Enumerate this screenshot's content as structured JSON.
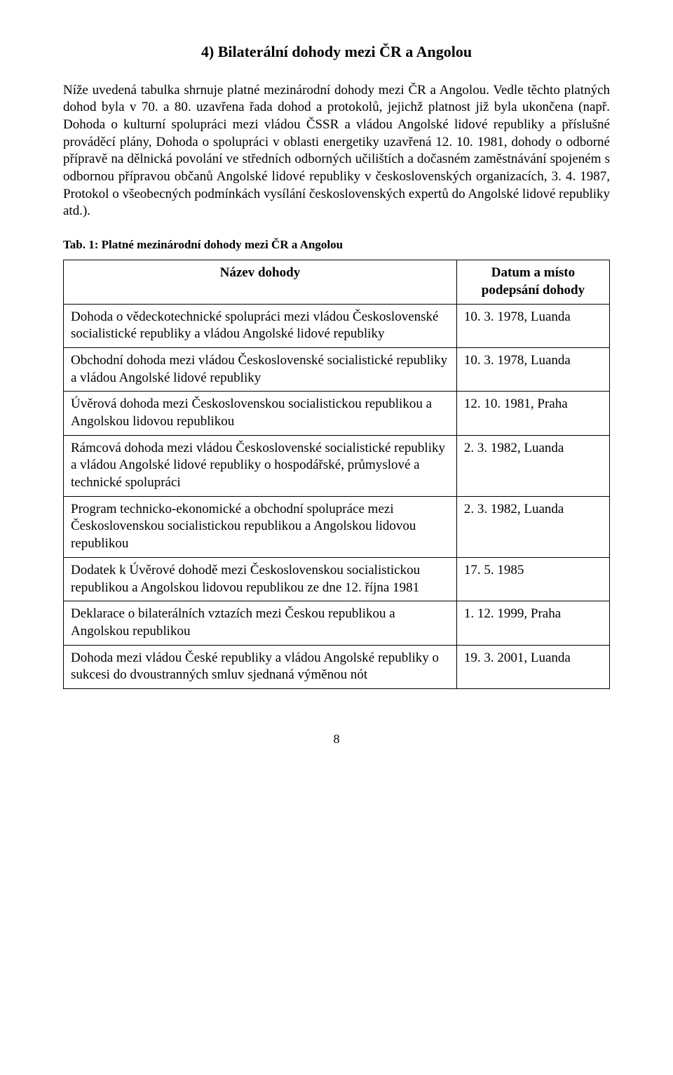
{
  "heading": "4) Bilaterální dohody mezi ČR a Angolou",
  "body": "Níže uvedená tabulka shrnuje platné mezinárodní dohody mezi ČR a Angolou. Vedle těchto platných dohod byla v 70. a 80. uzavřena řada dohod a protokolů, jejichž platnost již byla ukončena (např. Dohoda o kulturní spolupráci mezi vládou ČSSR a vládou Angolské lidové republiky a příslušné prováděcí plány, Dohoda o spolupráci v oblasti energetiky uzavřená 12. 10. 1981, dohody o odborné přípravě na dělnická povolání ve středních odborných učilištích a dočasném zaměstnávání spojeném s odbornou přípravou občanů Angolské lidové republiky v československých organizacích, 3. 4. 1987, Protokol o všeobecných podmínkách vysílání československých expertů do Angolské lidové republiky atd.).",
  "table_caption": "Tab. 1: Platné mezinárodní dohody mezi ČR a Angolou",
  "columns": {
    "name": "Název dohody",
    "date": "Datum a místo podepsání dohody"
  },
  "rows": [
    {
      "name": "Dohoda o vědeckotechnické spolupráci mezi vládou Československé socialistické republiky a vládou Angolské lidové republiky",
      "date": "10. 3. 1978, Luanda"
    },
    {
      "name": "Obchodní dohoda mezi vládou Československé socialistické republiky a vládou Angolské lidové republiky",
      "date": "10. 3. 1978, Luanda"
    },
    {
      "name": "Úvěrová dohoda mezi Československou socialistickou republikou a Angolskou lidovou republikou",
      "date": "12. 10. 1981, Praha"
    },
    {
      "name": "Rámcová dohoda mezi vládou Československé socialistické republiky a vládou Angolské lidové republiky o hospodářské, průmyslové a technické spolupráci",
      "date": "2. 3. 1982, Luanda"
    },
    {
      "name": "Program technicko-ekonomické a obchodní spolupráce mezi Československou socialistickou republikou a Angolskou lidovou republikou",
      "date": "2. 3. 1982, Luanda"
    },
    {
      "name": "Dodatek k Úvěrové dohodě mezi Československou socialistickou republikou a Angolskou lidovou republikou ze dne 12. října 1981",
      "date": "17. 5. 1985"
    },
    {
      "name": "Deklarace o bilaterálních vztazích mezi Českou republikou a Angolskou republikou",
      "date": "1. 12. 1999, Praha"
    },
    {
      "name": "Dohoda mezi vládou České republiky a vládou Angolské republiky o sukcesi do dvoustranných smluv sjednaná výměnou nót",
      "date": "19. 3. 2001, Luanda"
    }
  ],
  "page_number": "8"
}
